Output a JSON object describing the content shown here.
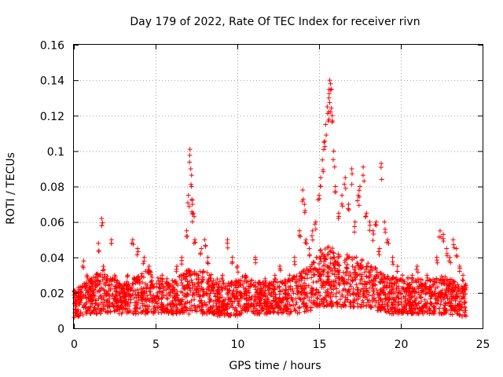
{
  "chart_data": {
    "type": "scatter",
    "title": "Day 179 of 2022, Rate Of TEC Index for receiver rivn",
    "xlabel": "GPS time / hours",
    "ylabel": "ROTI / TECUs",
    "xlim": [
      0,
      25
    ],
    "ylim": [
      0,
      0.16
    ],
    "xticks": [
      0,
      5,
      10,
      15,
      20,
      25
    ],
    "yticks": [
      0,
      0.02,
      0.04,
      0.06,
      0.08,
      0.1,
      0.12,
      0.14,
      0.16
    ],
    "xtick_labels": [
      "0",
      "5",
      "10",
      "15",
      "20",
      "25"
    ],
    "ytick_labels": [
      "0",
      "0.02",
      "0.04",
      "0.06",
      "0.08",
      "0.1",
      "0.12",
      "0.14",
      "0.16"
    ],
    "grid": true,
    "marker": "plus",
    "color": "#ff0000",
    "series": [
      {
        "name": "ROTI",
        "x": [
          0.1,
          0.3,
          0.4,
          0.6,
          0.8,
          1.0,
          1.2,
          1.5,
          1.7,
          1.8,
          2.0,
          2.3,
          2.5,
          2.8,
          3.0,
          3.3,
          3.6,
          3.9,
          4.1,
          4.3,
          4.6,
          4.8,
          5.1,
          5.4,
          5.7,
          6.0,
          6.3,
          6.6,
          6.9,
          7.0,
          7.1,
          7.15,
          7.2,
          7.25,
          7.3,
          7.4,
          7.6,
          7.8,
          8.0,
          8.2,
          8.5,
          8.8,
          9.1,
          9.4,
          9.7,
          10.0,
          10.2,
          10.5,
          10.8,
          11.1,
          11.4,
          11.7,
          12.0,
          12.3,
          12.6,
          12.9,
          13.2,
          13.5,
          13.8,
          14.0,
          14.1,
          14.2,
          14.4,
          14.6,
          14.8,
          15.0,
          15.1,
          15.2,
          15.3,
          15.4,
          15.5,
          15.6,
          15.65,
          15.7,
          15.75,
          15.8,
          15.9,
          16.0,
          16.2,
          16.4,
          16.6,
          16.8,
          17.0,
          17.2,
          17.4,
          17.5,
          17.7,
          17.9,
          18.1,
          18.3,
          18.5,
          18.7,
          18.8,
          19.0,
          19.2,
          19.5,
          19.8,
          20.1,
          20.4,
          20.7,
          21.0,
          21.3,
          21.6,
          21.9,
          22.2,
          22.4,
          22.6,
          22.8,
          23.0,
          23.2,
          23.4,
          23.6,
          23.8,
          23.95
        ],
        "y": [
          0.015,
          0.022,
          0.018,
          0.038,
          0.03,
          0.025,
          0.02,
          0.048,
          0.062,
          0.035,
          0.028,
          0.05,
          0.03,
          0.025,
          0.022,
          0.03,
          0.05,
          0.045,
          0.02,
          0.04,
          0.035,
          0.025,
          0.02,
          0.03,
          0.028,
          0.022,
          0.035,
          0.04,
          0.055,
          0.075,
          0.101,
          0.09,
          0.08,
          0.07,
          0.065,
          0.05,
          0.03,
          0.045,
          0.05,
          0.04,
          0.025,
          0.022,
          0.03,
          0.05,
          0.04,
          0.035,
          0.02,
          0.03,
          0.025,
          0.04,
          0.02,
          0.028,
          0.025,
          0.03,
          0.035,
          0.02,
          0.03,
          0.04,
          0.055,
          0.078,
          0.07,
          0.05,
          0.045,
          0.055,
          0.06,
          0.075,
          0.085,
          0.095,
          0.105,
          0.115,
          0.125,
          0.13,
          0.14,
          0.138,
          0.135,
          0.12,
          0.1,
          0.08,
          0.065,
          0.075,
          0.085,
          0.07,
          0.09,
          0.06,
          0.075,
          0.08,
          0.091,
          0.065,
          0.06,
          0.055,
          0.06,
          0.045,
          0.093,
          0.06,
          0.05,
          0.04,
          0.035,
          0.03,
          0.025,
          0.03,
          0.035,
          0.025,
          0.03,
          0.02,
          0.04,
          0.055,
          0.053,
          0.045,
          0.04,
          0.05,
          0.045,
          0.035,
          0.03,
          0.025
        ]
      }
    ],
    "band": {
      "x": [
        0.0,
        0.5,
        1.0,
        1.5,
        2.0,
        2.5,
        3.0,
        3.5,
        4.0,
        4.5,
        5.0,
        5.5,
        6.0,
        6.5,
        7.0,
        7.5,
        8.0,
        8.5,
        9.0,
        9.5,
        10.0,
        10.5,
        11.0,
        11.5,
        12.0,
        12.5,
        13.0,
        13.5,
        14.0,
        14.5,
        15.0,
        15.5,
        16.0,
        16.5,
        17.0,
        17.5,
        18.0,
        18.5,
        19.0,
        19.5,
        20.0,
        20.5,
        21.0,
        21.5,
        22.0,
        22.5,
        23.0,
        23.5,
        24.0
      ],
      "low": [
        0.006,
        0.007,
        0.008,
        0.008,
        0.008,
        0.008,
        0.008,
        0.008,
        0.008,
        0.008,
        0.008,
        0.008,
        0.008,
        0.008,
        0.008,
        0.008,
        0.008,
        0.008,
        0.006,
        0.007,
        0.007,
        0.008,
        0.008,
        0.008,
        0.008,
        0.008,
        0.008,
        0.008,
        0.009,
        0.01,
        0.012,
        0.012,
        0.012,
        0.012,
        0.012,
        0.012,
        0.012,
        0.01,
        0.009,
        0.008,
        0.008,
        0.008,
        0.008,
        0.008,
        0.008,
        0.008,
        0.008,
        0.007,
        0.006
      ],
      "high": [
        0.022,
        0.025,
        0.028,
        0.032,
        0.03,
        0.028,
        0.026,
        0.028,
        0.03,
        0.033,
        0.03,
        0.028,
        0.027,
        0.03,
        0.034,
        0.032,
        0.034,
        0.03,
        0.026,
        0.026,
        0.028,
        0.03,
        0.028,
        0.026,
        0.026,
        0.027,
        0.028,
        0.03,
        0.033,
        0.036,
        0.045,
        0.048,
        0.045,
        0.042,
        0.042,
        0.04,
        0.038,
        0.034,
        0.03,
        0.029,
        0.028,
        0.029,
        0.028,
        0.027,
        0.028,
        0.03,
        0.029,
        0.026,
        0.024
      ]
    }
  }
}
